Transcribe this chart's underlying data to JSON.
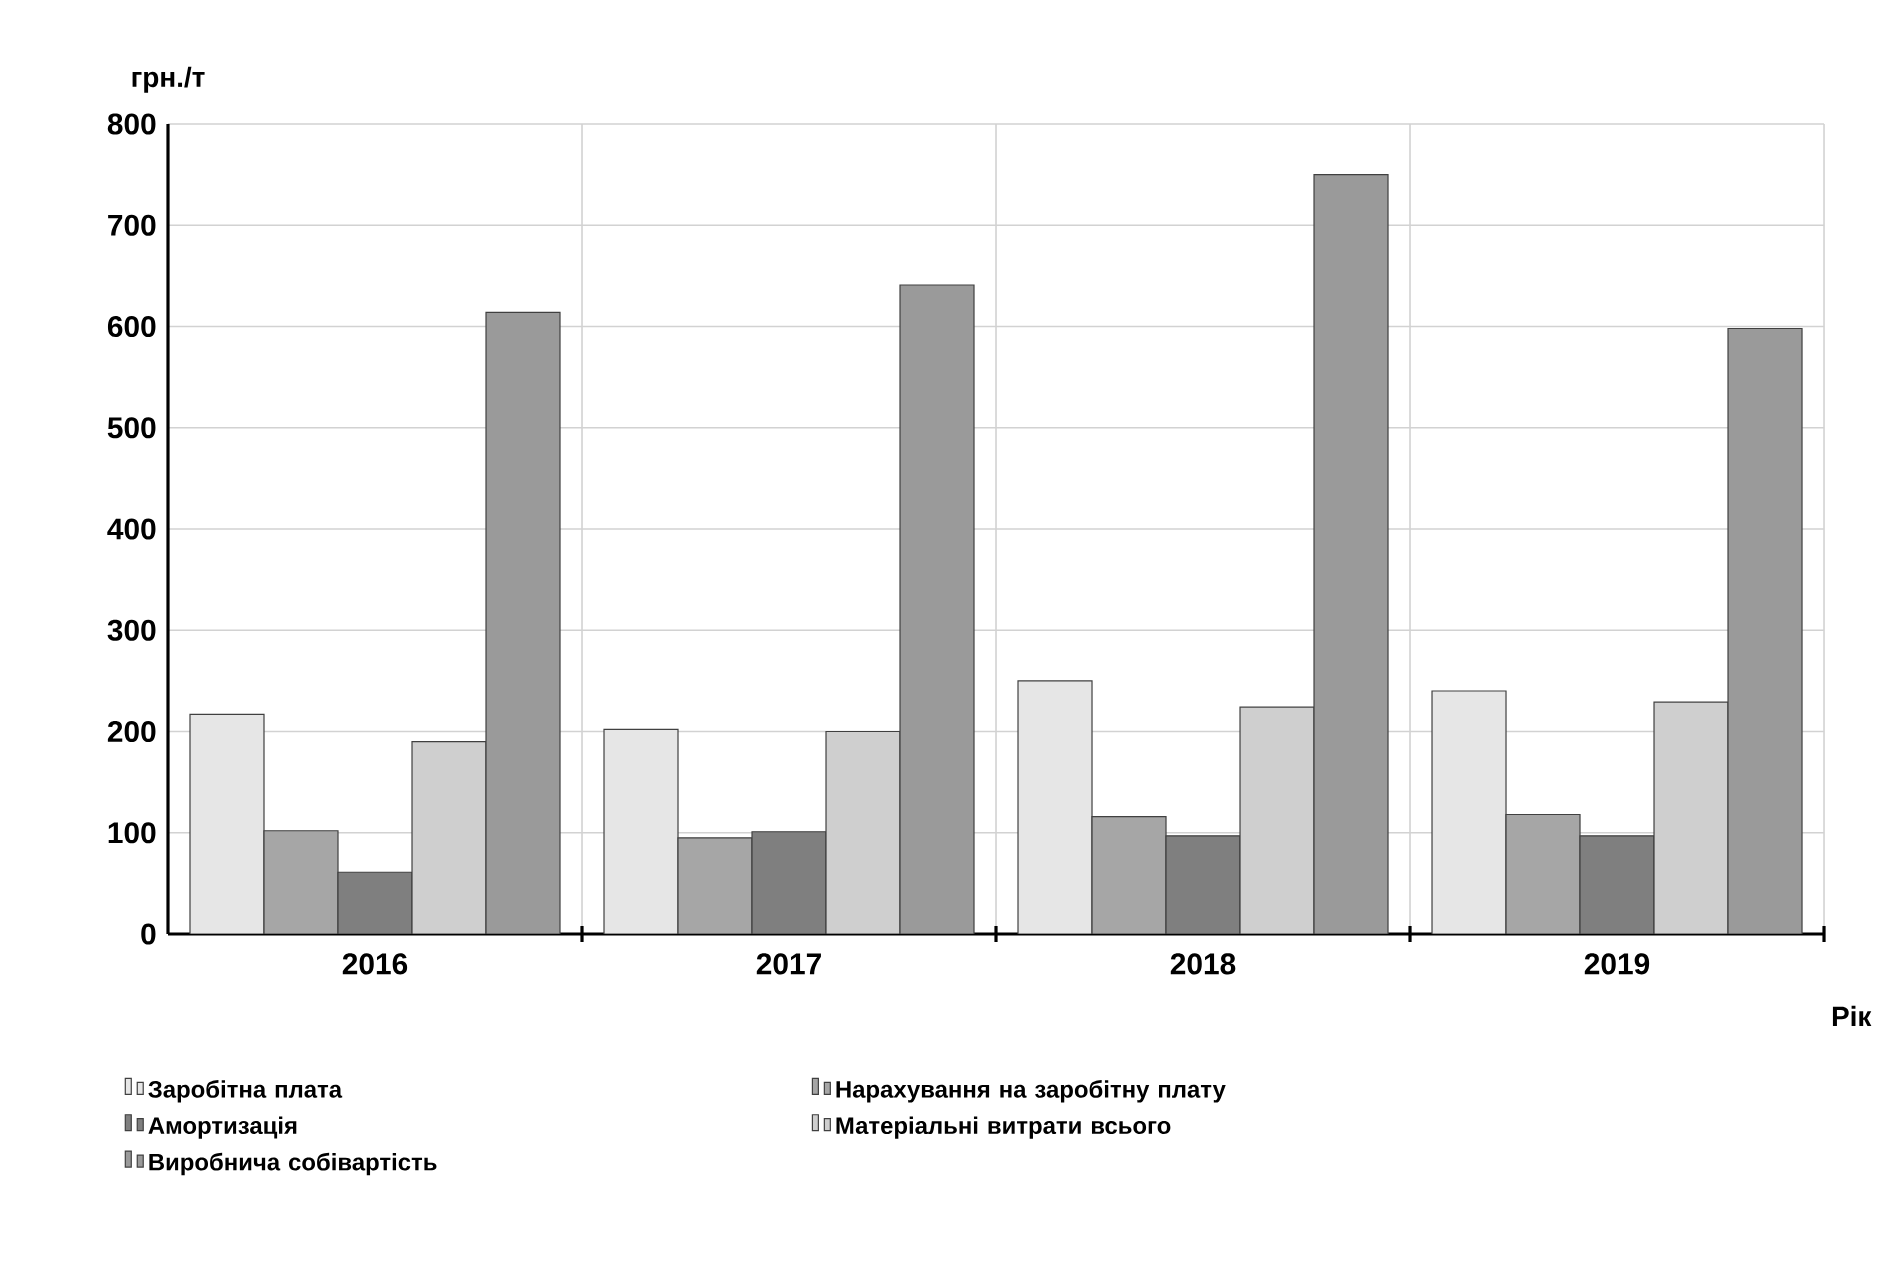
{
  "chart_data": {
    "type": "bar",
    "ylabel": "грн./т",
    "xlabel": "Рік",
    "categories": [
      "2016",
      "2017",
      "2018",
      "2019"
    ],
    "series": [
      {
        "name": "Заробітна плата",
        "color": "#e6e6e6",
        "values": [
          217,
          202,
          250,
          240
        ]
      },
      {
        "name": "Нарахування на заробітну плату",
        "color": "#a6a6a6",
        "values": [
          102,
          95,
          116,
          118
        ]
      },
      {
        "name": "Амортизація",
        "color": "#7f7f7f",
        "values": [
          61,
          101,
          97,
          97
        ]
      },
      {
        "name": "Матеріальні витрати всього",
        "color": "#cfcfcf",
        "values": [
          190,
          200,
          224,
          229
        ]
      },
      {
        "name": "Виробнича собівартість",
        "color": "#9a9a9a",
        "values": [
          614,
          641,
          750,
          598
        ]
      }
    ],
    "ylim": [
      0,
      800
    ],
    "yticks": [
      0,
      100,
      200,
      300,
      400,
      500,
      600,
      700,
      800
    ],
    "grid": true,
    "legend": "bottom"
  }
}
